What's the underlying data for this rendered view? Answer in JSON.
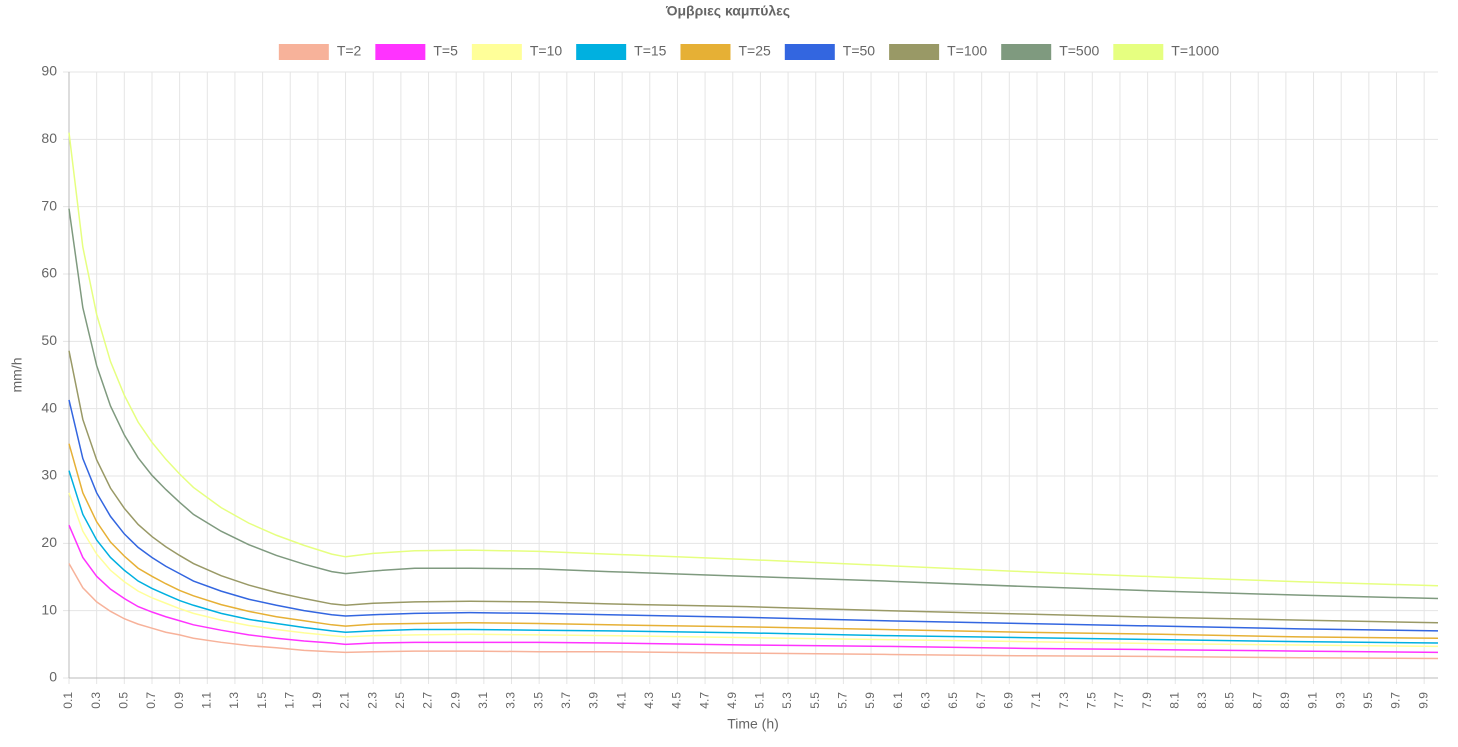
{
  "chart_data": {
    "type": "line",
    "title": "Όμβριες καμπύλες",
    "x_label": "Time (h)",
    "y_label": "mm/h",
    "x": [
      0.1,
      0.2,
      0.3,
      0.4,
      0.5,
      0.6,
      0.7,
      0.8,
      0.9,
      1.0,
      1.2,
      1.4,
      1.6,
      1.8,
      2.0,
      2.1,
      2.3,
      2.6,
      3.0,
      3.5,
      4.0,
      5.0,
      6.0,
      7.0,
      8.0,
      9.0,
      10.0
    ],
    "xlim": [
      0.1,
      10
    ],
    "xticks": [
      0.1,
      0.3,
      0.5,
      0.7,
      0.9,
      1.1,
      1.3,
      1.5,
      1.7,
      1.9,
      2.1,
      2.3,
      2.5,
      2.7,
      2.9,
      3.1,
      3.3,
      3.5,
      3.7,
      3.9,
      4.1,
      4.3,
      4.5,
      4.7,
      4.9,
      5.1,
      5.3,
      5.5,
      5.7,
      5.9,
      6.1,
      6.3,
      6.5,
      6.7,
      6.9,
      7.1,
      7.3,
      7.5,
      7.7,
      7.9,
      8.1,
      8.3,
      8.5,
      8.7,
      8.9,
      9.1,
      9.3,
      9.5,
      9.7,
      9.9
    ],
    "ylim": [
      0,
      90
    ],
    "yticks": [
      0,
      10,
      20,
      30,
      40,
      50,
      60,
      70,
      80,
      90
    ],
    "grid": true,
    "series": [
      {
        "name": "T=2",
        "color": "#f7b29a",
        "values": [
          17.0,
          13.4,
          11.3,
          9.9,
          8.8,
          8.0,
          7.4,
          6.8,
          6.4,
          5.9,
          5.3,
          4.8,
          4.5,
          4.1,
          3.9,
          3.8,
          3.9,
          4.0,
          4.0,
          3.9,
          3.9,
          3.7,
          3.5,
          3.3,
          3.2,
          3.0,
          2.9
        ]
      },
      {
        "name": "T=5",
        "color": "#ff33ff",
        "values": [
          22.7,
          17.9,
          15.1,
          13.2,
          11.8,
          10.6,
          9.8,
          9.1,
          8.5,
          7.9,
          7.1,
          6.4,
          5.9,
          5.5,
          5.2,
          5.0,
          5.2,
          5.3,
          5.3,
          5.3,
          5.2,
          4.9,
          4.7,
          4.4,
          4.2,
          4.0,
          3.8
        ]
      },
      {
        "name": "T=10",
        "color": "#ffff99",
        "values": [
          27.5,
          21.8,
          18.4,
          16.0,
          14.3,
          12.9,
          11.9,
          11.1,
          10.3,
          9.6,
          8.6,
          7.8,
          7.2,
          6.7,
          6.3,
          6.1,
          6.3,
          6.4,
          6.5,
          6.4,
          6.3,
          6.0,
          5.7,
          5.4,
          5.1,
          4.9,
          4.7
        ]
      },
      {
        "name": "T=15",
        "color": "#00b0e0",
        "values": [
          30.8,
          24.3,
          20.5,
          17.9,
          16.0,
          14.4,
          13.3,
          12.4,
          11.5,
          10.8,
          9.6,
          8.7,
          8.1,
          7.5,
          7.0,
          6.8,
          7.0,
          7.2,
          7.2,
          7.1,
          7.0,
          6.7,
          6.3,
          6.0,
          5.7,
          5.4,
          5.2
        ]
      },
      {
        "name": "T=25",
        "color": "#e6b035",
        "values": [
          34.8,
          27.5,
          23.2,
          20.2,
          18.1,
          16.3,
          15.1,
          14.0,
          13.0,
          12.2,
          10.9,
          9.9,
          9.1,
          8.5,
          7.9,
          7.7,
          8.0,
          8.1,
          8.2,
          8.1,
          7.9,
          7.6,
          7.2,
          6.8,
          6.5,
          6.1,
          5.9
        ]
      },
      {
        "name": "T=50",
        "color": "#3366e0",
        "values": [
          41.3,
          32.6,
          27.5,
          24.0,
          21.4,
          19.4,
          17.9,
          16.6,
          15.5,
          14.4,
          12.9,
          11.7,
          10.8,
          10.0,
          9.4,
          9.2,
          9.4,
          9.6,
          9.7,
          9.6,
          9.4,
          9.0,
          8.5,
          8.1,
          7.7,
          7.3,
          7.0
        ]
      },
      {
        "name": "T=100",
        "color": "#999966",
        "values": [
          48.6,
          38.4,
          32.4,
          28.2,
          25.2,
          22.8,
          21.0,
          19.5,
          18.2,
          17.0,
          15.2,
          13.8,
          12.7,
          11.8,
          11.0,
          10.8,
          11.1,
          11.3,
          11.4,
          11.3,
          11.0,
          10.6,
          10.0,
          9.5,
          9.0,
          8.6,
          8.2
        ]
      },
      {
        "name": "T=500",
        "color": "#7f9a7f",
        "values": [
          69.7,
          55.0,
          46.4,
          40.4,
          36.1,
          32.7,
          30.1,
          28.0,
          26.1,
          24.3,
          21.8,
          19.8,
          18.2,
          16.9,
          15.8,
          15.5,
          15.9,
          16.3,
          16.3,
          16.2,
          15.8,
          15.1,
          14.4,
          13.6,
          12.9,
          12.3,
          11.8
        ]
      },
      {
        "name": "T=1000",
        "color": "#e6ff80",
        "values": [
          81,
          64,
          54,
          47,
          42,
          38,
          35,
          32.5,
          30.3,
          28.3,
          25.3,
          23,
          21.2,
          19.7,
          18.4,
          18,
          18.5,
          18.9,
          19,
          18.8,
          18.4,
          17.6,
          16.7,
          15.8,
          15,
          14.3,
          13.7
        ]
      }
    ]
  }
}
